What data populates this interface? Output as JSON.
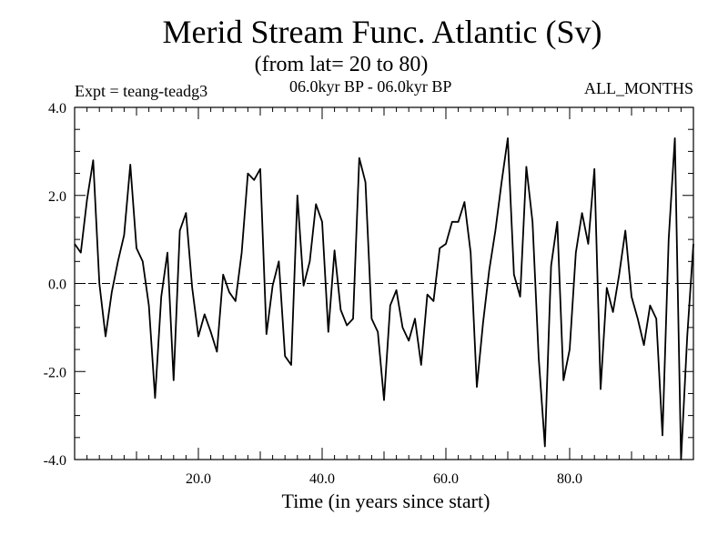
{
  "header": {
    "title": "Merid Stream Func. Atlantic (Sv)",
    "subtitle": "(from lat= 20 to 80)",
    "expt": "Expt = teang-teadg3",
    "period": "06.0kyr BP - 06.0kyr BP",
    "months": "ALL_MONTHS"
  },
  "chart_data": {
    "type": "line",
    "title": "Merid Stream Func. Atlantic (Sv)",
    "xlabel": "Time (in years since start)",
    "ylabel": "",
    "xlim": [
      0,
      100
    ],
    "ylim": [
      -4,
      4
    ],
    "xticks": [
      20,
      40,
      60,
      80
    ],
    "xtick_labels": [
      "20.0",
      "40.0",
      "60.0",
      "80.0"
    ],
    "yticks": [
      -4,
      -2,
      0,
      2,
      4
    ],
    "ytick_labels": [
      "-4.0",
      "-2.0",
      "0.0",
      "2.0",
      "4.0"
    ],
    "reference_line": 0,
    "series": [
      {
        "name": "Merid Stream Func.",
        "x": [
          0,
          1,
          2,
          3,
          4,
          5,
          6,
          7,
          8,
          9,
          10,
          11,
          12,
          13,
          14,
          15,
          16,
          17,
          18,
          19,
          20,
          21,
          22,
          23,
          24,
          25,
          26,
          27,
          28,
          29,
          30,
          31,
          32,
          33,
          34,
          35,
          36,
          37,
          38,
          39,
          40,
          41,
          42,
          43,
          44,
          45,
          46,
          47,
          48,
          49,
          50,
          51,
          52,
          53,
          54,
          55,
          56,
          57,
          58,
          59,
          60,
          61,
          62,
          63,
          64,
          65,
          66,
          67,
          68,
          69,
          70,
          71,
          72,
          73,
          74,
          75,
          76,
          77,
          78,
          79,
          80,
          81,
          82,
          83,
          84,
          85,
          86,
          87,
          88,
          89,
          90,
          91,
          92,
          93,
          94,
          95,
          96,
          97,
          98,
          99,
          100
        ],
        "y": [
          0.9,
          0.7,
          1.9,
          2.8,
          0.0,
          -1.2,
          -0.2,
          0.5,
          1.1,
          2.7,
          0.8,
          0.5,
          -0.5,
          -2.6,
          -0.3,
          0.7,
          -2.2,
          1.2,
          1.6,
          -0.1,
          -1.2,
          -0.7,
          -1.1,
          -1.55,
          0.2,
          -0.2,
          -0.4,
          0.7,
          2.5,
          2.35,
          2.6,
          -1.15,
          -0.05,
          0.5,
          -1.65,
          -1.85,
          2.0,
          -0.05,
          0.5,
          1.8,
          1.4,
          -1.1,
          0.75,
          -0.6,
          -0.95,
          -0.8,
          2.85,
          2.3,
          -0.8,
          -1.1,
          -2.65,
          -0.5,
          -0.15,
          -1.0,
          -1.3,
          -0.8,
          -1.85,
          -0.25,
          -0.4,
          0.8,
          0.9,
          1.4,
          1.4,
          1.85,
          0.7,
          -2.35,
          -0.9,
          0.3,
          1.2,
          2.3,
          3.3,
          0.2,
          -0.3,
          2.65,
          1.4,
          -1.7,
          -3.7,
          0.4,
          1.4,
          -2.2,
          -1.5,
          0.7,
          1.6,
          0.9,
          2.6,
          -2.4,
          -0.1,
          -0.65,
          0.2,
          1.2,
          -0.3,
          -0.8,
          -1.4,
          -0.5,
          -0.8,
          -3.45,
          1.0,
          3.3,
          -4.0,
          -1.2,
          0.9
        ]
      }
    ]
  }
}
